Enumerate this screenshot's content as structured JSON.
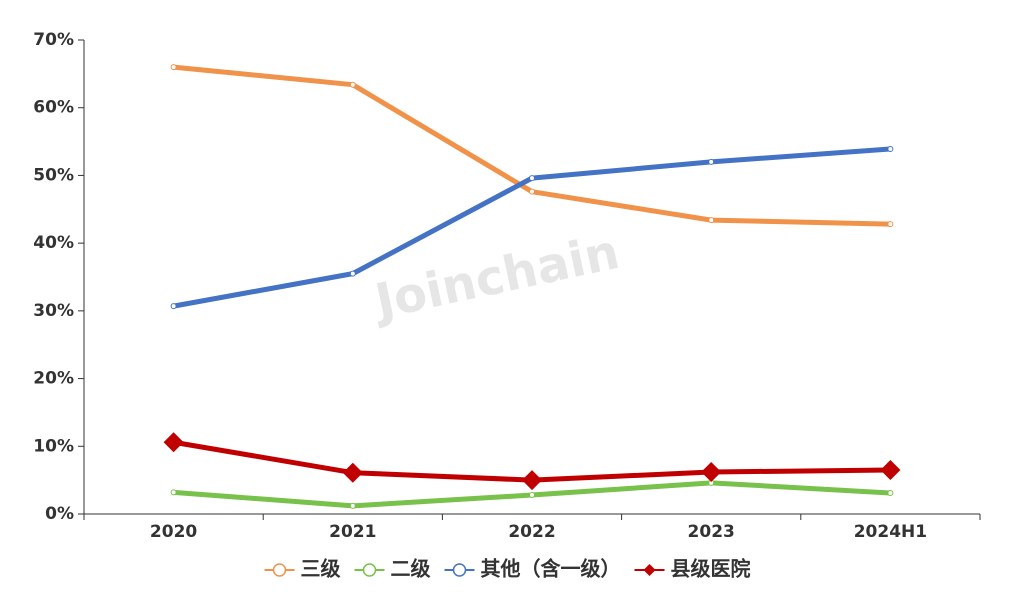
{
  "chart_data": {
    "type": "line",
    "watermark": "Joinchain",
    "categories": [
      "2020",
      "2021",
      "2022",
      "2023",
      "2024H1"
    ],
    "series": [
      {
        "name": "三级",
        "color": "#f0924a",
        "marker": "circle",
        "values": [
          66.0,
          63.4,
          47.6,
          43.4,
          42.8
        ]
      },
      {
        "name": "二级",
        "color": "#78c14a",
        "marker": "circle",
        "values": [
          3.2,
          1.2,
          2.8,
          4.6,
          3.1
        ]
      },
      {
        "name": "其他（含一级）",
        "color": "#4472c4",
        "marker": "circle",
        "values": [
          30.7,
          35.5,
          49.6,
          52.0,
          53.9
        ]
      },
      {
        "name": "县级医院",
        "color": "#c00000",
        "marker": "diamond",
        "values": [
          10.6,
          6.1,
          5.0,
          6.2,
          6.5
        ]
      }
    ],
    "ylim": [
      0,
      70
    ],
    "yticks": [
      {
        "value": 0,
        "label": "0%"
      },
      {
        "value": 10,
        "label": "10%"
      },
      {
        "value": 20,
        "label": "20%"
      },
      {
        "value": 30,
        "label": "30%"
      },
      {
        "value": 40,
        "label": "40%"
      },
      {
        "value": 50,
        "label": "50%"
      },
      {
        "value": 60,
        "label": "60%"
      },
      {
        "value": 70,
        "label": "70%"
      }
    ],
    "legend": "bottom"
  }
}
